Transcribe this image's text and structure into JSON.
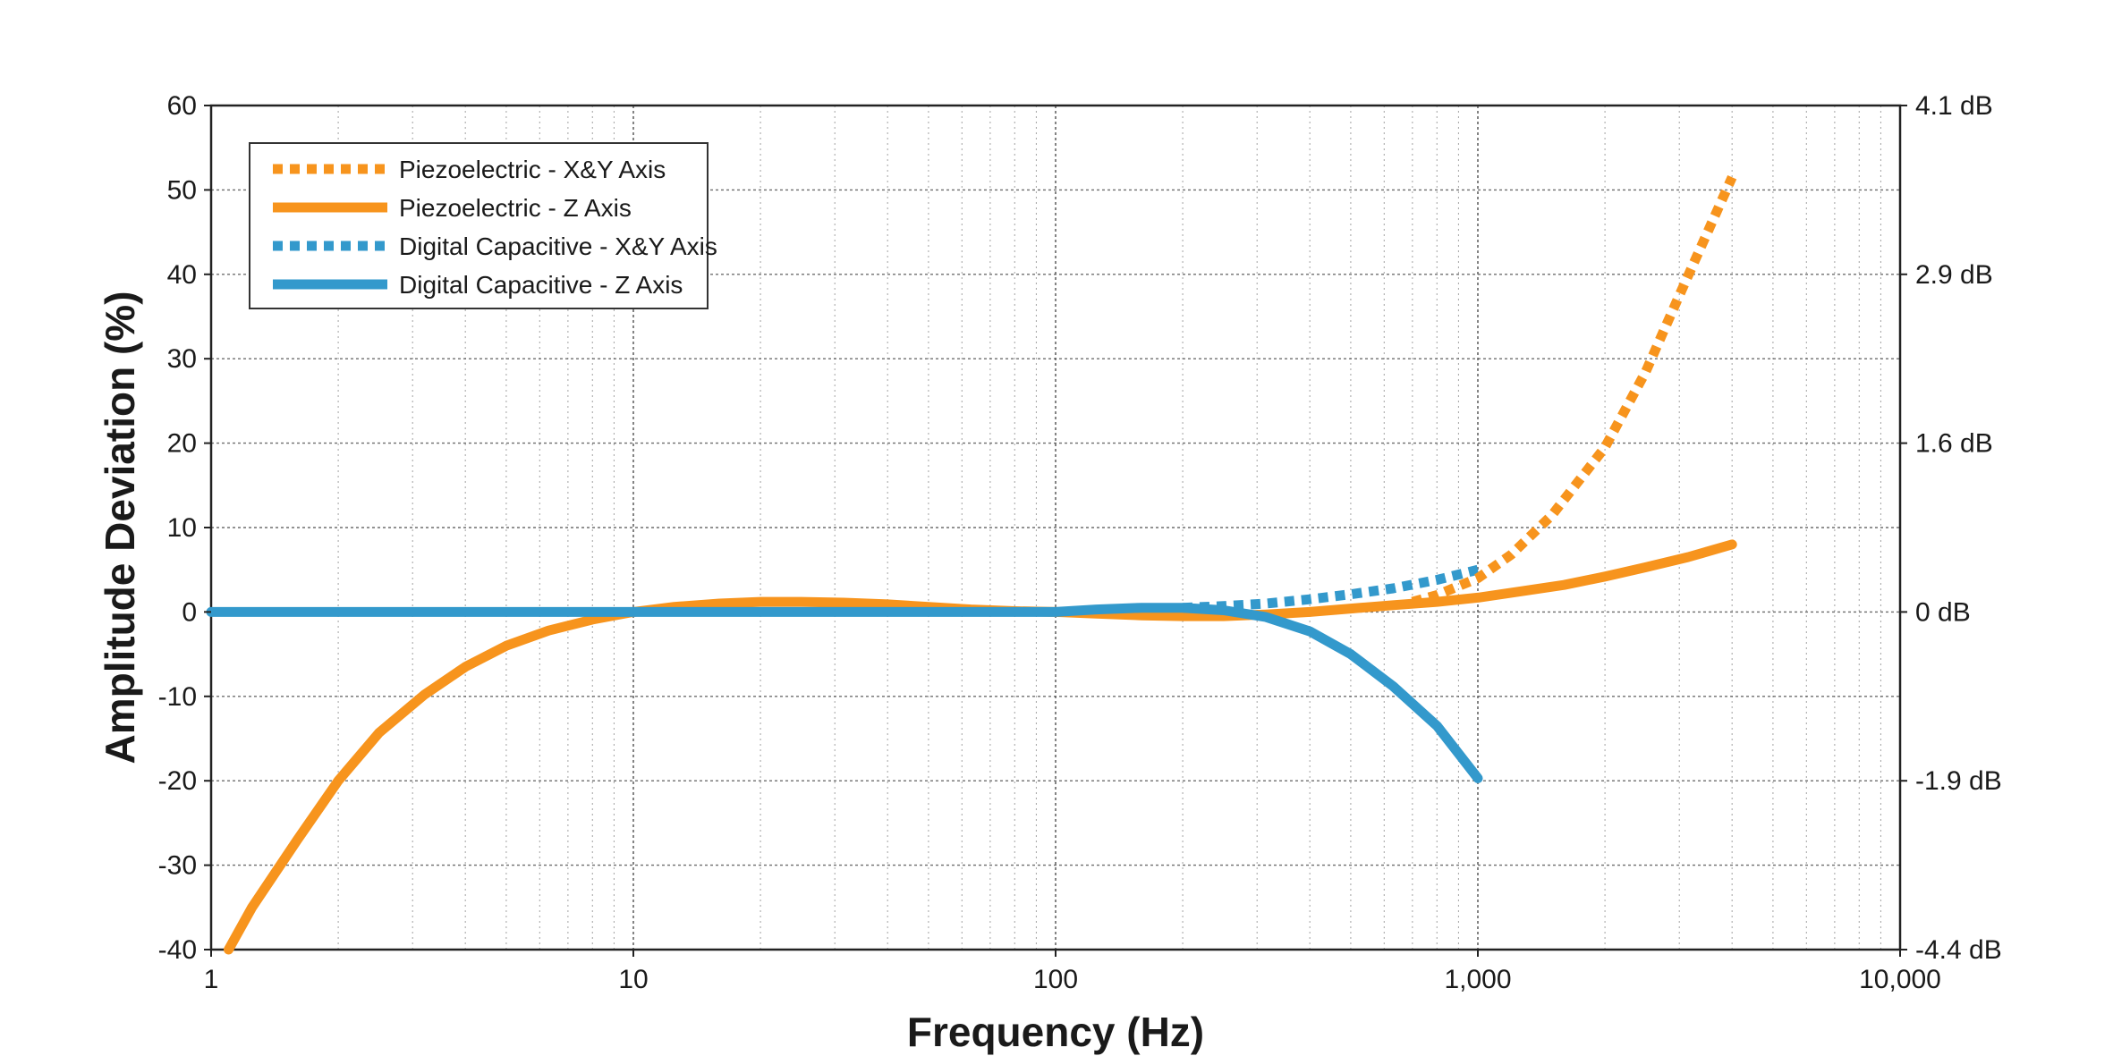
{
  "chart_data": {
    "type": "line",
    "xlabel": "Frequency (Hz)",
    "ylabel": "Amplitude Deviation (%)",
    "x_scale": "log",
    "xlim": [
      1,
      10000
    ],
    "ylim": [
      -40,
      60
    ],
    "x_ticks": [
      1,
      10,
      100,
      1000,
      10000
    ],
    "x_tick_labels": [
      "1",
      "10",
      "100",
      "1,000",
      "10,000"
    ],
    "y_ticks": [
      -40,
      -30,
      -20,
      -10,
      0,
      10,
      20,
      30,
      40,
      50,
      60
    ],
    "y_tick_labels": [
      "-40",
      "-30",
      "-20",
      "-10",
      "0",
      "10",
      "20",
      "30",
      "40",
      "50",
      "60"
    ],
    "y2_ticks": [
      -40,
      -20,
      0,
      20,
      40,
      60
    ],
    "y2_tick_labels": [
      "-4.4 dB",
      "-1.9 dB",
      "0 dB",
      "1.6 dB",
      "2.9 dB",
      "4.1 dB"
    ],
    "grid": true,
    "legend_position": "top-left",
    "colors": {
      "piezo": "#f7941d",
      "digital": "#3399cc",
      "grid": "#555555",
      "frame": "#222222"
    },
    "series": [
      {
        "name": "Piezoelectric - X&Y Axis",
        "color": "#f7941d",
        "style": "dotted",
        "x": [
          700,
          800,
          1000,
          1200,
          1500,
          2000,
          2500,
          3000,
          3500,
          4000
        ],
        "y": [
          1.2,
          2.0,
          4.0,
          6.8,
          11.5,
          19.5,
          28.5,
          37.5,
          45.0,
          51.5
        ]
      },
      {
        "name": "Piezoelectric - Z Axis",
        "color": "#f7941d",
        "style": "solid",
        "x": [
          1.1,
          1.25,
          1.6,
          2,
          2.5,
          3.2,
          4,
          5,
          6.3,
          8,
          10,
          12.5,
          16,
          20,
          25,
          31.5,
          40,
          50,
          63,
          80,
          100,
          125,
          160,
          200,
          250,
          315,
          400,
          500,
          630,
          800,
          1000,
          1250,
          1600,
          2000,
          2500,
          3150,
          4000
        ],
        "y": [
          -40,
          -35,
          -27,
          -20,
          -14.3,
          -9.8,
          -6.5,
          -4.0,
          -2.2,
          -0.9,
          0,
          0.6,
          1.0,
          1.2,
          1.2,
          1.1,
          0.9,
          0.6,
          0.3,
          0.1,
          0,
          -0.2,
          -0.4,
          -0.5,
          -0.5,
          -0.3,
          0,
          0.4,
          0.8,
          1.2,
          1.7,
          2.4,
          3.2,
          4.2,
          5.3,
          6.5,
          8.0
        ]
      },
      {
        "name": "Digital Capacitive - X&Y Axis",
        "color": "#3399cc",
        "style": "dotted",
        "x": [
          200,
          250,
          315,
          400,
          500,
          630,
          800,
          1000
        ],
        "y": [
          0.5,
          0.7,
          1.0,
          1.5,
          2.1,
          2.8,
          3.8,
          5.0
        ]
      },
      {
        "name": "Digital Capacitive - Z Axis",
        "color": "#3399cc",
        "style": "solid",
        "x": [
          1,
          2,
          5,
          10,
          20,
          50,
          80,
          100,
          125,
          160,
          200,
          250,
          315,
          400,
          500,
          630,
          800,
          1000
        ],
        "y": [
          0,
          0,
          0,
          0,
          0,
          0,
          0,
          0,
          0.3,
          0.5,
          0.5,
          0.2,
          -0.6,
          -2.3,
          -5.0,
          -8.8,
          -13.5,
          -19.7
        ]
      }
    ]
  }
}
